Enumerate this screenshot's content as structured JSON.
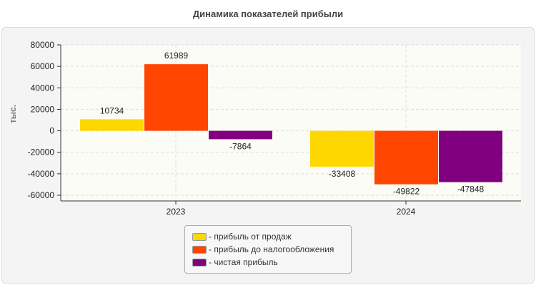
{
  "chart_data": {
    "type": "bar",
    "title": "Динамика показателей прибыли",
    "ylabel": "тыс.",
    "xlabel": "",
    "categories": [
      "2023",
      "2024"
    ],
    "series": [
      {
        "name": "- прибыль от продаж",
        "color": "#FFD700",
        "values": [
          10734,
          -33408
        ]
      },
      {
        "name": "- прибыль до налогообложения",
        "color": "#FF4500",
        "values": [
          61989,
          -49822
        ]
      },
      {
        "name": "- чистая прибыль",
        "color": "#800080",
        "values": [
          -7864,
          -47848
        ]
      }
    ],
    "ylim": [
      -65000,
      80000
    ],
    "yticks": [
      80000,
      60000,
      40000,
      20000,
      0,
      -20000,
      -40000,
      -60000
    ],
    "grid": true,
    "legend": "bottom"
  }
}
